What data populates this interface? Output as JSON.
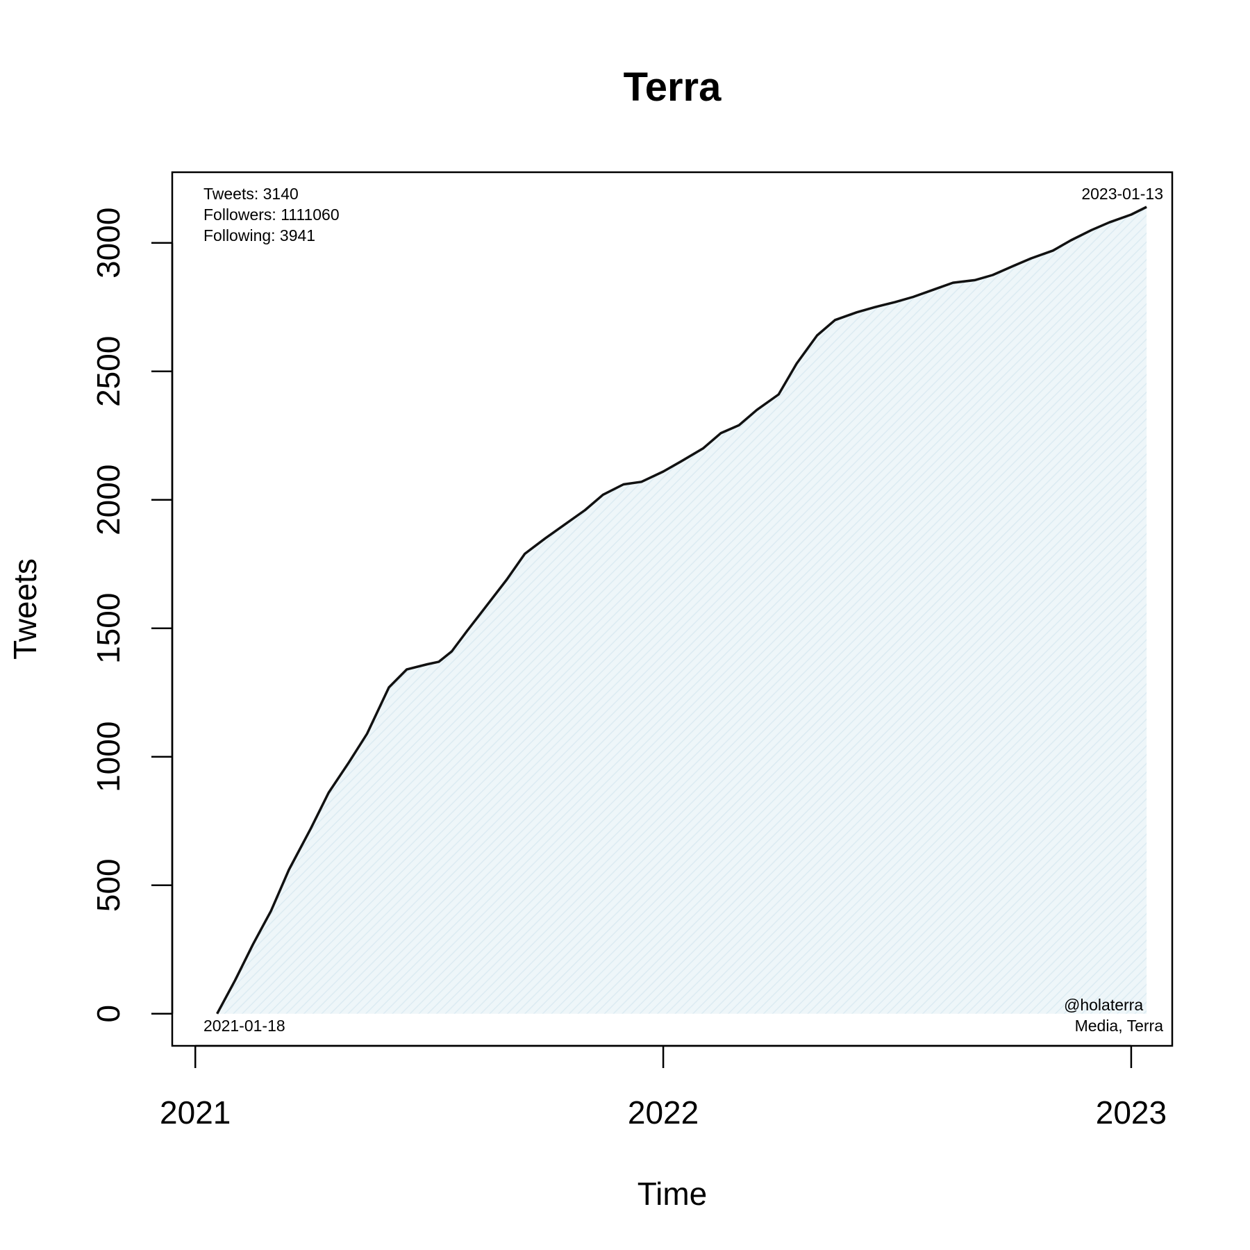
{
  "chart_data": {
    "type": "area",
    "title": "Terra",
    "xlabel": "Time",
    "ylabel": "Tweets",
    "xlim": [
      "2020-12-14",
      "2023-02-02"
    ],
    "ylim": [
      -125,
      3275
    ],
    "x_ticks": [
      {
        "date": "2021-01-01",
        "label": "2021"
      },
      {
        "date": "2022-01-01",
        "label": "2022"
      },
      {
        "date": "2023-01-01",
        "label": "2023"
      }
    ],
    "y_ticks": [
      0,
      500,
      1000,
      1500,
      2000,
      2500,
      3000
    ],
    "fill_color": "#e6f1f6",
    "line_color": "#111111",
    "stats": {
      "tweets": "Tweets: 3140",
      "followers": "Followers: 1111060",
      "following": "Following: 3941"
    },
    "start_date_label": "2021-01-18",
    "end_date_label": "2023-01-13",
    "account": {
      "handle": "@holaterra",
      "category": "Media, Terra"
    },
    "series": [
      {
        "x": [
          "2021-01-18",
          "2021-02-01",
          "2021-02-15",
          "2021-03-01",
          "2021-03-15",
          "2021-04-01",
          "2021-04-15",
          "2021-05-01",
          "2021-05-15",
          "2021-06-01",
          "2021-06-15",
          "2021-07-01",
          "2021-07-10",
          "2021-07-20",
          "2021-08-01",
          "2021-08-15",
          "2021-09-01",
          "2021-09-15",
          "2021-10-01",
          "2021-10-15",
          "2021-11-01",
          "2021-11-15",
          "2021-12-01",
          "2021-12-15",
          "2022-01-01",
          "2022-01-15",
          "2022-02-01",
          "2022-02-15",
          "2022-03-01",
          "2022-03-15",
          "2022-04-01",
          "2022-04-15",
          "2022-05-01",
          "2022-05-15",
          "2022-06-01",
          "2022-06-15",
          "2022-07-01",
          "2022-07-15",
          "2022-08-01",
          "2022-08-15",
          "2022-09-01",
          "2022-09-15",
          "2022-10-01",
          "2022-10-15",
          "2022-11-01",
          "2022-11-15",
          "2022-12-01",
          "2022-12-15",
          "2023-01-01",
          "2023-01-13"
        ],
        "y": [
          0,
          130,
          270,
          400,
          560,
          720,
          860,
          980,
          1090,
          1270,
          1340,
          1360,
          1370,
          1410,
          1490,
          1580,
          1690,
          1790,
          1850,
          1900,
          1960,
          2020,
          2060,
          2070,
          2110,
          2150,
          2200,
          2260,
          2290,
          2350,
          2410,
          2530,
          2640,
          2700,
          2730,
          2750,
          2770,
          2790,
          2820,
          2845,
          2855,
          2875,
          2910,
          2940,
          2970,
          3010,
          3050,
          3080,
          3110,
          3140
        ]
      }
    ]
  }
}
